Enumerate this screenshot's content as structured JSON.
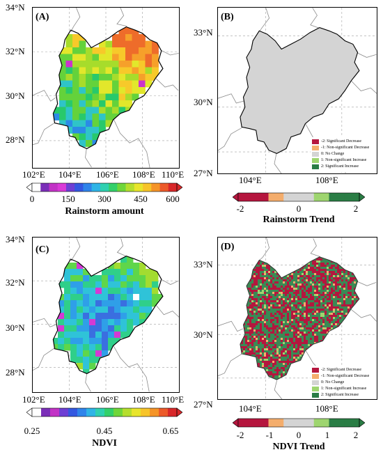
{
  "colors": {
    "trend": [
      "#b5163e",
      "#f4ad6c",
      "#d4d4d4",
      "#9ed56f",
      "#2a7d45"
    ],
    "frame": "#000000",
    "grid": "#9a9a9a",
    "province": "#8a8a8a"
  },
  "panels": {
    "a": {
      "letter": "(A)",
      "lat_labels": [
        "34°N",
        "32°N",
        "30°N",
        "28°N"
      ],
      "lon_labels": [
        "102°E",
        "104°E",
        "106°E",
        "108°E",
        "110°E"
      ],
      "colorbar": {
        "ticks": [
          "0",
          "150",
          "300",
          "450",
          "600"
        ],
        "title": "Rainstorm amount"
      }
    },
    "b": {
      "letter": "(B)",
      "lat_labels": [
        "33°N",
        "30°N",
        "27°N"
      ],
      "lon_labels": [
        "104°E",
        "108°E"
      ],
      "legend": [
        "-2: Significant Decrease",
        "-1: Non-significant Decrease",
        "0: No Change",
        "1: Non-significant Increase",
        "2: Significant Increase"
      ],
      "colorbar": {
        "ticks": [
          "-2",
          "0",
          "2"
        ],
        "title": "Rainstorm Trend"
      }
    },
    "c": {
      "letter": "(C)",
      "lat_labels": [
        "34°N",
        "32°N",
        "30°N",
        "28°N"
      ],
      "lon_labels": [
        "102°E",
        "104°E",
        "106°E",
        "108°E",
        "110°E"
      ],
      "colorbar": {
        "ticks": [
          "0.25",
          "0.45",
          "0.65"
        ],
        "title": "NDVI"
      }
    },
    "d": {
      "letter": "(D)",
      "lat_labels": [
        "33°N",
        "30°N",
        "27°N"
      ],
      "lon_labels": [
        "104°E",
        "108°E"
      ],
      "legend": [
        "-2: Significant Decrease",
        "-1: Non-significant Decrease",
        "0: No Change",
        "1: Non-significant Increase",
        "2: Significant Increase"
      ],
      "colorbar": {
        "ticks": [
          "-2",
          "-1",
          "0",
          "1",
          "2"
        ],
        "title": "NDVI Trend"
      }
    }
  }
}
